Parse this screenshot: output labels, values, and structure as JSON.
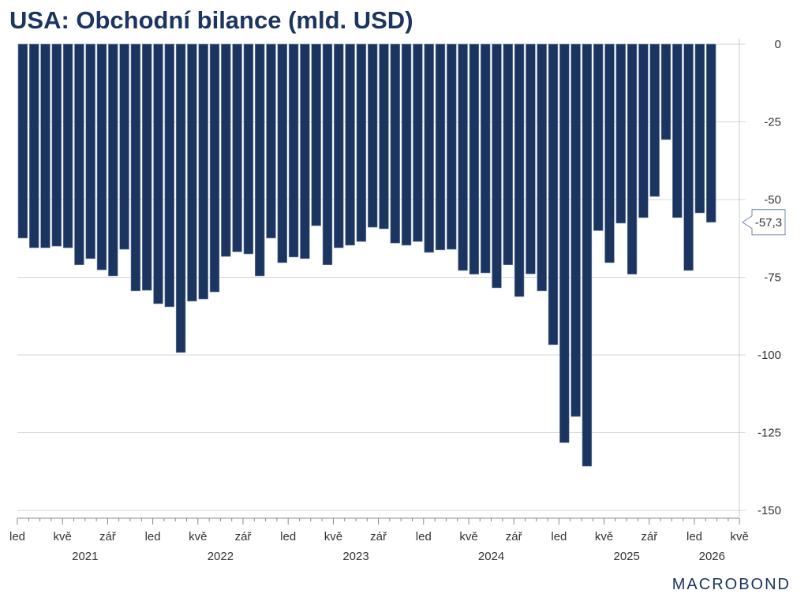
{
  "chart_data": {
    "type": "bar",
    "title": "USA: Obchodní bilance (mld. USD)",
    "xlabel": "",
    "ylabel": "",
    "ylim": [
      -150,
      0
    ],
    "yticks": [
      0,
      -25,
      -50,
      -75,
      -100,
      -125,
      -150
    ],
    "ytick_labels": [
      "0",
      "-25",
      "-50",
      "-75",
      "-100",
      "-125",
      "-150"
    ],
    "grid": true,
    "start": "2021-01",
    "month_ticks": [
      "led",
      "kvě",
      "zář"
    ],
    "years": [
      "2021",
      "2022",
      "2023",
      "2024",
      "2025",
      "2026"
    ],
    "extra_tick": "kvě",
    "series": [
      {
        "name": "Obchodní bilance",
        "color": "#1b3560",
        "values": [
          -62.4,
          -65.5,
          -65.5,
          -65.0,
          -65.5,
          -71.0,
          -69.0,
          -72.6,
          -74.6,
          -66.0,
          -79.4,
          -79.2,
          -83.5,
          -84.5,
          -99.2,
          -82.7,
          -82.0,
          -79.7,
          -68.3,
          -66.8,
          -67.5,
          -74.6,
          -62.4,
          -70.3,
          -68.5,
          -69.0,
          -58.4,
          -71.0,
          -65.5,
          -64.7,
          -63.5,
          -58.9,
          -59.4,
          -64.0,
          -64.7,
          -63.5,
          -67.0,
          -66.2,
          -66.0,
          -72.8,
          -74.0,
          -73.6,
          -78.4,
          -71.0,
          -81.2,
          -73.9,
          -79.4,
          -96.7,
          -128.2,
          -119.8,
          -135.8,
          -60.0,
          -70.3,
          -57.6,
          -74.0,
          -55.8,
          -49.0,
          -30.7,
          -55.8,
          -72.8,
          -54.3,
          -57.3
        ]
      }
    ],
    "last_value_label": "-57,3"
  },
  "branding": {
    "logo": "MACROBOND"
  }
}
